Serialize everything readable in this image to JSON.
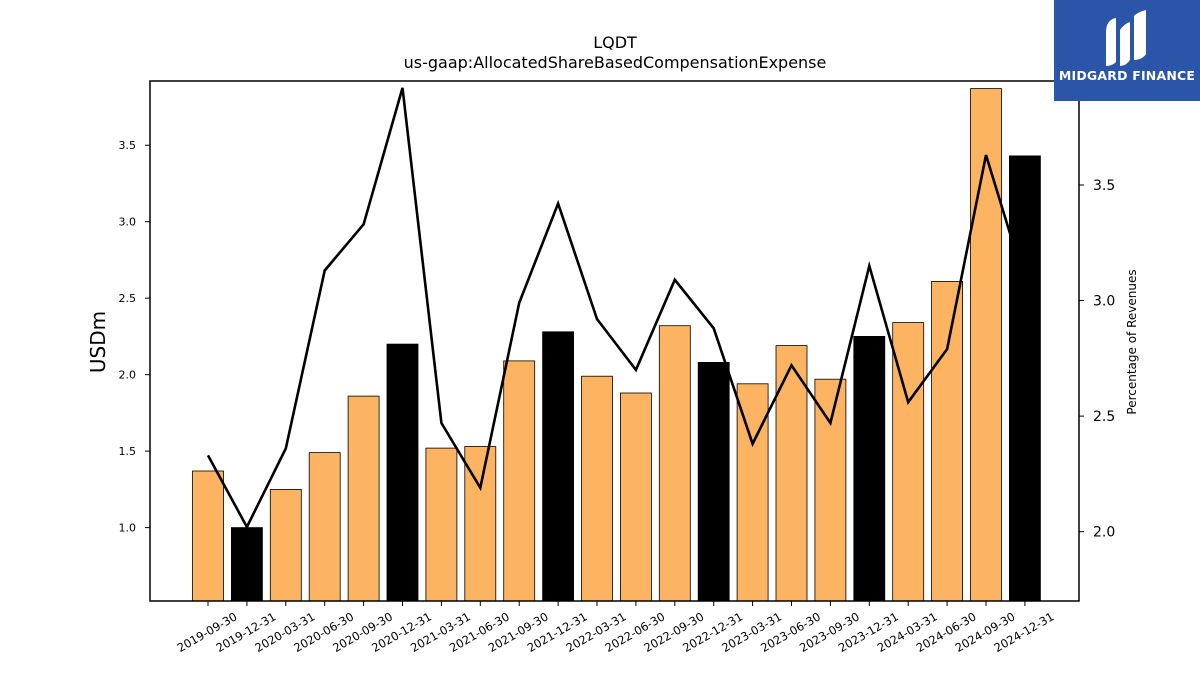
{
  "chart_data": {
    "type": "bar",
    "title": "LQDT",
    "subtitle": "us-gaap:AllocatedShareBasedCompensationExpense",
    "ylabel": "USDm",
    "y2label": "Percentage of Revenues",
    "ylim": [
      0.52,
      3.92
    ],
    "y2lim": [
      1.7,
      3.95
    ],
    "yticks": [
      "1.0",
      "1.5",
      "2.0",
      "2.5",
      "3.0",
      "3.5"
    ],
    "y2ticks": [
      "2.0",
      "2.5",
      "3.0",
      "3.5"
    ],
    "categories": [
      "2019-09-30",
      "2019-12-31",
      "2020-03-31",
      "2020-06-30",
      "2020-09-30",
      "2020-12-31",
      "2021-03-31",
      "2021-06-30",
      "2021-09-30",
      "2021-12-31",
      "2022-03-31",
      "2022-06-30",
      "2022-09-30",
      "2022-12-31",
      "2023-03-31",
      "2023-06-30",
      "2023-09-30",
      "2023-12-31",
      "2024-03-31",
      "2024-06-30",
      "2024-09-30",
      "2024-12-31"
    ],
    "series": [
      {
        "kind": "bar",
        "axis": "left",
        "values": [
          1.37,
          1.0,
          1.25,
          1.49,
          1.86,
          2.2,
          1.52,
          1.53,
          2.09,
          2.28,
          1.99,
          1.88,
          2.32,
          2.08,
          1.94,
          2.19,
          1.97,
          2.25,
          2.34,
          2.61,
          3.87,
          3.43
        ],
        "highlight": [
          false,
          true,
          false,
          false,
          false,
          true,
          false,
          false,
          false,
          true,
          false,
          false,
          false,
          true,
          false,
          false,
          false,
          true,
          false,
          false,
          false,
          true
        ]
      },
      {
        "kind": "line",
        "axis": "right",
        "values": [
          2.33,
          2.02,
          2.36,
          3.13,
          3.33,
          3.92,
          2.47,
          2.19,
          2.99,
          3.42,
          2.92,
          2.7,
          3.09,
          2.88,
          2.38,
          2.72,
          2.47,
          3.15,
          2.56,
          2.79,
          3.63,
          3.08
        ]
      }
    ],
    "colors": {
      "bar": "#fdb462",
      "bar_highlight": "#000000",
      "line": "#000000",
      "logo_bg": "#2b55a8"
    },
    "grid": false,
    "legend": "none"
  },
  "logo": {
    "text": "MIDGARD FINANCE",
    "icon": "midgard-logo-icon"
  }
}
